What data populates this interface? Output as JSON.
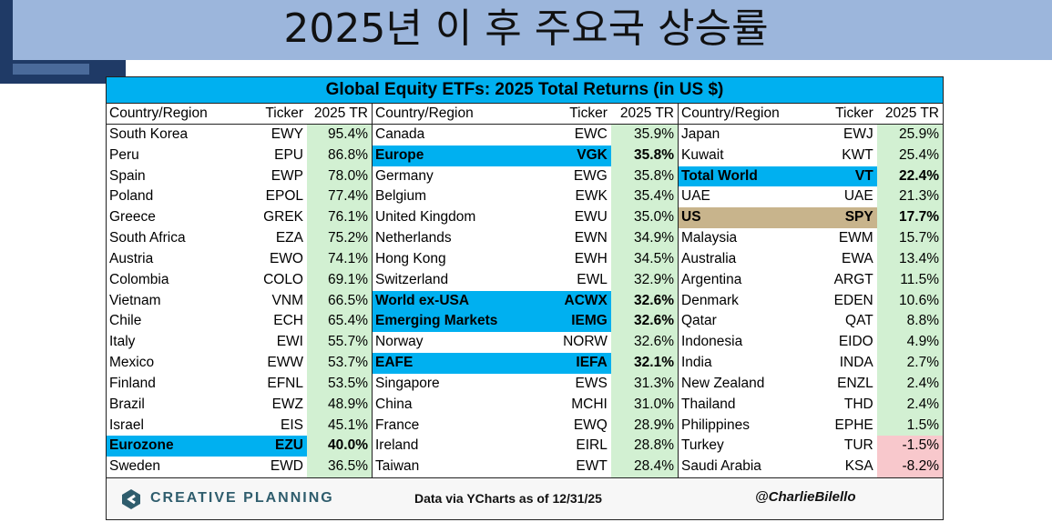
{
  "page_title": "2025년 이 후 주요국 상승률",
  "table_title": "Global Equity ETFs: 2025 Total Returns (in US $)",
  "headers": {
    "country": "Country/Region",
    "ticker": "Ticker",
    "tr": "2025 TR"
  },
  "footer": {
    "brand": "CREATIVE PLANNING",
    "source": "Data via YCharts as of 12/31/25",
    "handle": "@CharlieBilello"
  },
  "colors": {
    "title_bar": "#00b0f0",
    "highlight_blue": "#00b0f0",
    "highlight_us": "#c8b48c",
    "positive_fill": "#d2f0d2",
    "negative_fill": "#f8c8cc"
  },
  "chart_data": {
    "type": "table",
    "title": "Global Equity ETFs: 2025 Total Returns (in US $)",
    "columns": [
      "Country/Region",
      "Ticker",
      "2025 TR"
    ],
    "groups": [
      [
        {
          "country": "South Korea",
          "ticker": "EWY",
          "tr": "95.4%",
          "value": 95.4
        },
        {
          "country": "Peru",
          "ticker": "EPU",
          "tr": "86.8%",
          "value": 86.8
        },
        {
          "country": "Spain",
          "ticker": "EWP",
          "tr": "78.0%",
          "value": 78.0
        },
        {
          "country": "Poland",
          "ticker": "EPOL",
          "tr": "77.4%",
          "value": 77.4
        },
        {
          "country": "Greece",
          "ticker": "GREK",
          "tr": "76.1%",
          "value": 76.1
        },
        {
          "country": "South Africa",
          "ticker": "EZA",
          "tr": "75.2%",
          "value": 75.2
        },
        {
          "country": "Austria",
          "ticker": "EWO",
          "tr": "74.1%",
          "value": 74.1
        },
        {
          "country": "Colombia",
          "ticker": "COLO",
          "tr": "69.1%",
          "value": 69.1
        },
        {
          "country": "Vietnam",
          "ticker": "VNM",
          "tr": "66.5%",
          "value": 66.5
        },
        {
          "country": "Chile",
          "ticker": "ECH",
          "tr": "65.4%",
          "value": 65.4
        },
        {
          "country": "Italy",
          "ticker": "EWI",
          "tr": "55.7%",
          "value": 55.7
        },
        {
          "country": "Mexico",
          "ticker": "EWW",
          "tr": "53.7%",
          "value": 53.7
        },
        {
          "country": "Finland",
          "ticker": "EFNL",
          "tr": "53.5%",
          "value": 53.5
        },
        {
          "country": "Brazil",
          "ticker": "EWZ",
          "tr": "48.9%",
          "value": 48.9
        },
        {
          "country": "Israel",
          "ticker": "EIS",
          "tr": "45.1%",
          "value": 45.1
        },
        {
          "country": "Eurozone",
          "ticker": "EZU",
          "tr": "40.0%",
          "value": 40.0,
          "highlight": "blue"
        },
        {
          "country": "Sweden",
          "ticker": "EWD",
          "tr": "36.5%",
          "value": 36.5
        }
      ],
      [
        {
          "country": "Canada",
          "ticker": "EWC",
          "tr": "35.9%",
          "value": 35.9
        },
        {
          "country": "Europe",
          "ticker": "VGK",
          "tr": "35.8%",
          "value": 35.8,
          "highlight": "blue"
        },
        {
          "country": "Germany",
          "ticker": "EWG",
          "tr": "35.8%",
          "value": 35.8
        },
        {
          "country": "Belgium",
          "ticker": "EWK",
          "tr": "35.4%",
          "value": 35.4
        },
        {
          "country": "United Kingdom",
          "ticker": "EWU",
          "tr": "35.0%",
          "value": 35.0
        },
        {
          "country": "Netherlands",
          "ticker": "EWN",
          "tr": "34.9%",
          "value": 34.9
        },
        {
          "country": "Hong Kong",
          "ticker": "EWH",
          "tr": "34.5%",
          "value": 34.5
        },
        {
          "country": "Switzerland",
          "ticker": "EWL",
          "tr": "32.9%",
          "value": 32.9
        },
        {
          "country": "World ex-USA",
          "ticker": "ACWX",
          "tr": "32.6%",
          "value": 32.6,
          "highlight": "blue"
        },
        {
          "country": "Emerging Markets",
          "ticker": "IEMG",
          "tr": "32.6%",
          "value": 32.6,
          "highlight": "blue"
        },
        {
          "country": "Norway",
          "ticker": "NORW",
          "tr": "32.6%",
          "value": 32.6
        },
        {
          "country": "EAFE",
          "ticker": "IEFA",
          "tr": "32.1%",
          "value": 32.1,
          "highlight": "blue"
        },
        {
          "country": "Singapore",
          "ticker": "EWS",
          "tr": "31.3%",
          "value": 31.3
        },
        {
          "country": "China",
          "ticker": "MCHI",
          "tr": "31.0%",
          "value": 31.0
        },
        {
          "country": "France",
          "ticker": "EWQ",
          "tr": "28.9%",
          "value": 28.9
        },
        {
          "country": "Ireland",
          "ticker": "EIRL",
          "tr": "28.8%",
          "value": 28.8
        },
        {
          "country": "Taiwan",
          "ticker": "EWT",
          "tr": "28.4%",
          "value": 28.4
        }
      ],
      [
        {
          "country": "Japan",
          "ticker": "EWJ",
          "tr": "25.9%",
          "value": 25.9
        },
        {
          "country": "Kuwait",
          "ticker": "KWT",
          "tr": "25.4%",
          "value": 25.4
        },
        {
          "country": "Total World",
          "ticker": "VT",
          "tr": "22.4%",
          "value": 22.4,
          "highlight": "blue"
        },
        {
          "country": "UAE",
          "ticker": "UAE",
          "tr": "21.3%",
          "value": 21.3
        },
        {
          "country": "US",
          "ticker": "SPY",
          "tr": "17.7%",
          "value": 17.7,
          "highlight": "tan"
        },
        {
          "country": "Malaysia",
          "ticker": "EWM",
          "tr": "15.7%",
          "value": 15.7
        },
        {
          "country": "Australia",
          "ticker": "EWA",
          "tr": "13.4%",
          "value": 13.4
        },
        {
          "country": "Argentina",
          "ticker": "ARGT",
          "tr": "11.5%",
          "value": 11.5
        },
        {
          "country": "Denmark",
          "ticker": "EDEN",
          "tr": "10.6%",
          "value": 10.6
        },
        {
          "country": "Qatar",
          "ticker": "QAT",
          "tr": "8.8%",
          "value": 8.8
        },
        {
          "country": "Indonesia",
          "ticker": "EIDO",
          "tr": "4.9%",
          "value": 4.9
        },
        {
          "country": "India",
          "ticker": "INDA",
          "tr": "2.7%",
          "value": 2.7
        },
        {
          "country": "New Zealand",
          "ticker": "ENZL",
          "tr": "2.4%",
          "value": 2.4
        },
        {
          "country": "Thailand",
          "ticker": "THD",
          "tr": "2.4%",
          "value": 2.4
        },
        {
          "country": "Philippines",
          "ticker": "EPHE",
          "tr": "1.5%",
          "value": 1.5
        },
        {
          "country": "Turkey",
          "ticker": "TUR",
          "tr": "-1.5%",
          "value": -1.5
        },
        {
          "country": "Saudi Arabia",
          "ticker": "KSA",
          "tr": "-8.2%",
          "value": -8.2
        }
      ]
    ]
  }
}
